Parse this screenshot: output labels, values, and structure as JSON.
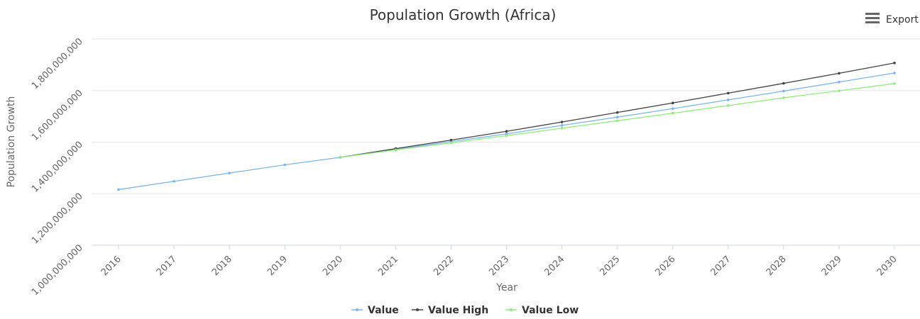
{
  "export_label": "Export",
  "colors": {
    "value": "#7cb5ec",
    "value_high": "#434348",
    "value_low": "#90ed7d",
    "grid": "#e6e6e6",
    "axis": "#ccd6eb"
  },
  "chart_data": {
    "type": "line",
    "title": "Population Growth (Africa)",
    "xlabel": "Year",
    "ylabel": "Population Growth",
    "categories": [
      "2016",
      "2017",
      "2018",
      "2019",
      "2020",
      "2021",
      "2022",
      "2023",
      "2024",
      "2025",
      "2026",
      "2027",
      "2028",
      "2029",
      "2030"
    ],
    "yticks": [
      "1,000,000,000",
      "1,200,000,000",
      "1,400,000,000",
      "1,600,000,000",
      "1,800,000,000"
    ],
    "ylim": [
      1000000000,
      1800000000
    ],
    "legend_position": "bottom-center",
    "grid": true,
    "series": [
      {
        "name": "Value",
        "color": "#7cb5ec",
        "values": [
          1216000000,
          1248000000,
          1280000000,
          1312000000,
          1341000000,
          1372000000,
          1402000000,
          1432000000,
          1465000000,
          1497000000,
          1530000000,
          1564000000,
          1598000000,
          1633000000,
          1668000000
        ]
      },
      {
        "name": "Value High",
        "color": "#434348",
        "values": [
          null,
          null,
          null,
          null,
          1341000000,
          1375000000,
          1408000000,
          1442000000,
          1478000000,
          1515000000,
          1552000000,
          1590000000,
          1628000000,
          1667000000,
          1707000000
        ]
      },
      {
        "name": "Value Low",
        "color": "#90ed7d",
        "values": [
          null,
          null,
          null,
          null,
          1341000000,
          1370000000,
          1397000000,
          1425000000,
          1454000000,
          1483000000,
          1512000000,
          1542000000,
          1572000000,
          1599000000,
          1627000000
        ]
      }
    ]
  }
}
